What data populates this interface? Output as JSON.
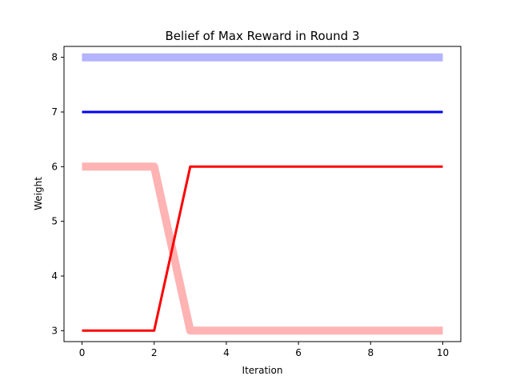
{
  "chart_data": {
    "type": "line",
    "title": "Belief of Max Reward in Round 3",
    "xlabel": "Iteration",
    "ylabel": "Weight",
    "xlim": [
      -0.5,
      10.5
    ],
    "ylim": [
      2.8,
      8.2
    ],
    "xticks": [
      0,
      2,
      4,
      6,
      8,
      10
    ],
    "yticks": [
      3,
      4,
      5,
      6,
      7,
      8
    ],
    "grid": false,
    "legend": "none",
    "x": [
      0,
      1,
      2,
      3,
      4,
      5,
      6,
      7,
      8,
      9,
      10
    ],
    "series": [
      {
        "color": "#b3b3ff",
        "style": "thick",
        "values": [
          8,
          8,
          8,
          8,
          8,
          8,
          8,
          8,
          8,
          8,
          8
        ]
      },
      {
        "color": "#0000ff",
        "style": "thin",
        "values": [
          7,
          7,
          7,
          7,
          7,
          7,
          7,
          7,
          7,
          7,
          7
        ]
      },
      {
        "color": "#ffb3b3",
        "style": "thick",
        "values": [
          6,
          6,
          6,
          3,
          3,
          3,
          3,
          3,
          3,
          3,
          3
        ]
      },
      {
        "color": "#ff0000",
        "style": "thin",
        "values": [
          3,
          3,
          3,
          6,
          6,
          6,
          6,
          6,
          6,
          6,
          6
        ]
      }
    ]
  }
}
